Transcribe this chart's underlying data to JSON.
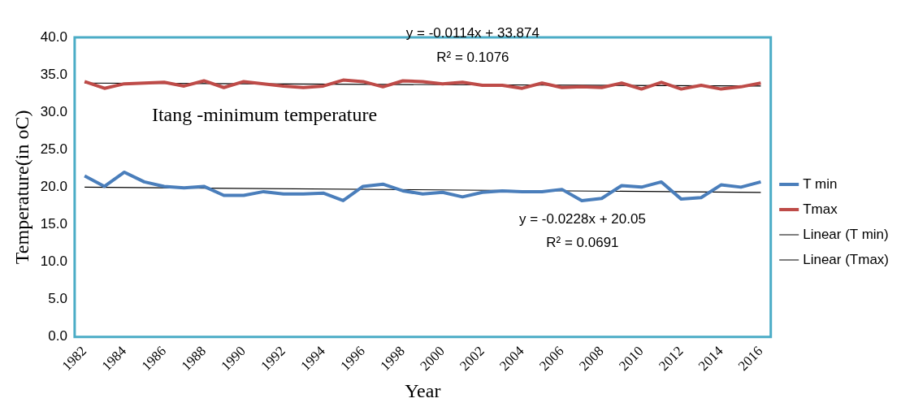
{
  "chart_data": {
    "type": "line",
    "title": "Itang -minimum temperature",
    "xlabel": "Year",
    "ylabel": "Temperature(in oC)",
    "categories": [
      "1982",
      null,
      "1984",
      null,
      "1986",
      null,
      "1988",
      null,
      "1990",
      null,
      "1992",
      null,
      "1994",
      null,
      "1996",
      null,
      "1998",
      null,
      "2000",
      null,
      "2002",
      null,
      "2004",
      null,
      "2006",
      null,
      "2008",
      null,
      "2010",
      null,
      "2012",
      null,
      "2014",
      null,
      "2016"
    ],
    "series": [
      {
        "name": "T min",
        "color": "#4a7ebb",
        "values": [
          21.5,
          20.1,
          22.0,
          20.7,
          20.1,
          19.9,
          20.1,
          18.9,
          18.9,
          19.4,
          19.1,
          19.1,
          19.2,
          18.2,
          20.1,
          20.4,
          19.5,
          19.1,
          19.3,
          18.7,
          19.3,
          19.5,
          19.4,
          19.4,
          19.7,
          18.2,
          18.5,
          20.2,
          20.0,
          20.7,
          18.4,
          18.6,
          20.3,
          20.0,
          20.7
        ]
      },
      {
        "name": "Tmax",
        "color": "#be4b48",
        "values": [
          34.1,
          33.2,
          33.8,
          33.9,
          34.0,
          33.5,
          34.2,
          33.3,
          34.1,
          33.8,
          33.5,
          33.3,
          33.5,
          34.3,
          34.1,
          33.4,
          34.2,
          34.1,
          33.8,
          34.0,
          33.6,
          33.6,
          33.2,
          33.9,
          33.3,
          33.4,
          33.3,
          33.9,
          33.1,
          34.0,
          33.1,
          33.6,
          33.1,
          33.4,
          33.9
        ]
      },
      {
        "name": "Linear (T min)",
        "color": "#000000",
        "values": [
          20.0,
          null,
          null,
          null,
          null,
          null,
          null,
          null,
          null,
          null,
          null,
          null,
          null,
          null,
          null,
          null,
          null,
          null,
          null,
          null,
          null,
          null,
          null,
          null,
          null,
          null,
          null,
          null,
          null,
          null,
          null,
          null,
          null,
          null,
          19.3
        ]
      },
      {
        "name": "Linear (Tmax)",
        "color": "#000000",
        "values": [
          33.9,
          null,
          null,
          null,
          null,
          null,
          null,
          null,
          null,
          null,
          null,
          null,
          null,
          null,
          null,
          null,
          null,
          null,
          null,
          null,
          null,
          null,
          null,
          null,
          null,
          null,
          null,
          null,
          null,
          null,
          null,
          null,
          null,
          null,
          33.5
        ]
      }
    ],
    "ylim": [
      0,
      40
    ],
    "yticks": [
      {
        "value": 0,
        "label": "0.0"
      },
      {
        "value": 5,
        "label": "5.0"
      },
      {
        "value": 10,
        "label": "10.0"
      },
      {
        "value": 15,
        "label": "15.0"
      },
      {
        "value": 20,
        "label": "20.0"
      },
      {
        "value": 25,
        "label": "25.0"
      },
      {
        "value": 30,
        "label": "30.0"
      },
      {
        "value": 35,
        "label": "35.0"
      },
      {
        "value": 40,
        "label": "40.0"
      }
    ],
    "annotations": [
      "y = -0.0114x + 33.874",
      "R² = 0.1076",
      "y = -0.0228x + 20.05",
      "R² = 0.0691"
    ],
    "grid": false,
    "legend": "right",
    "marker": "none",
    "line_style": "solid"
  }
}
